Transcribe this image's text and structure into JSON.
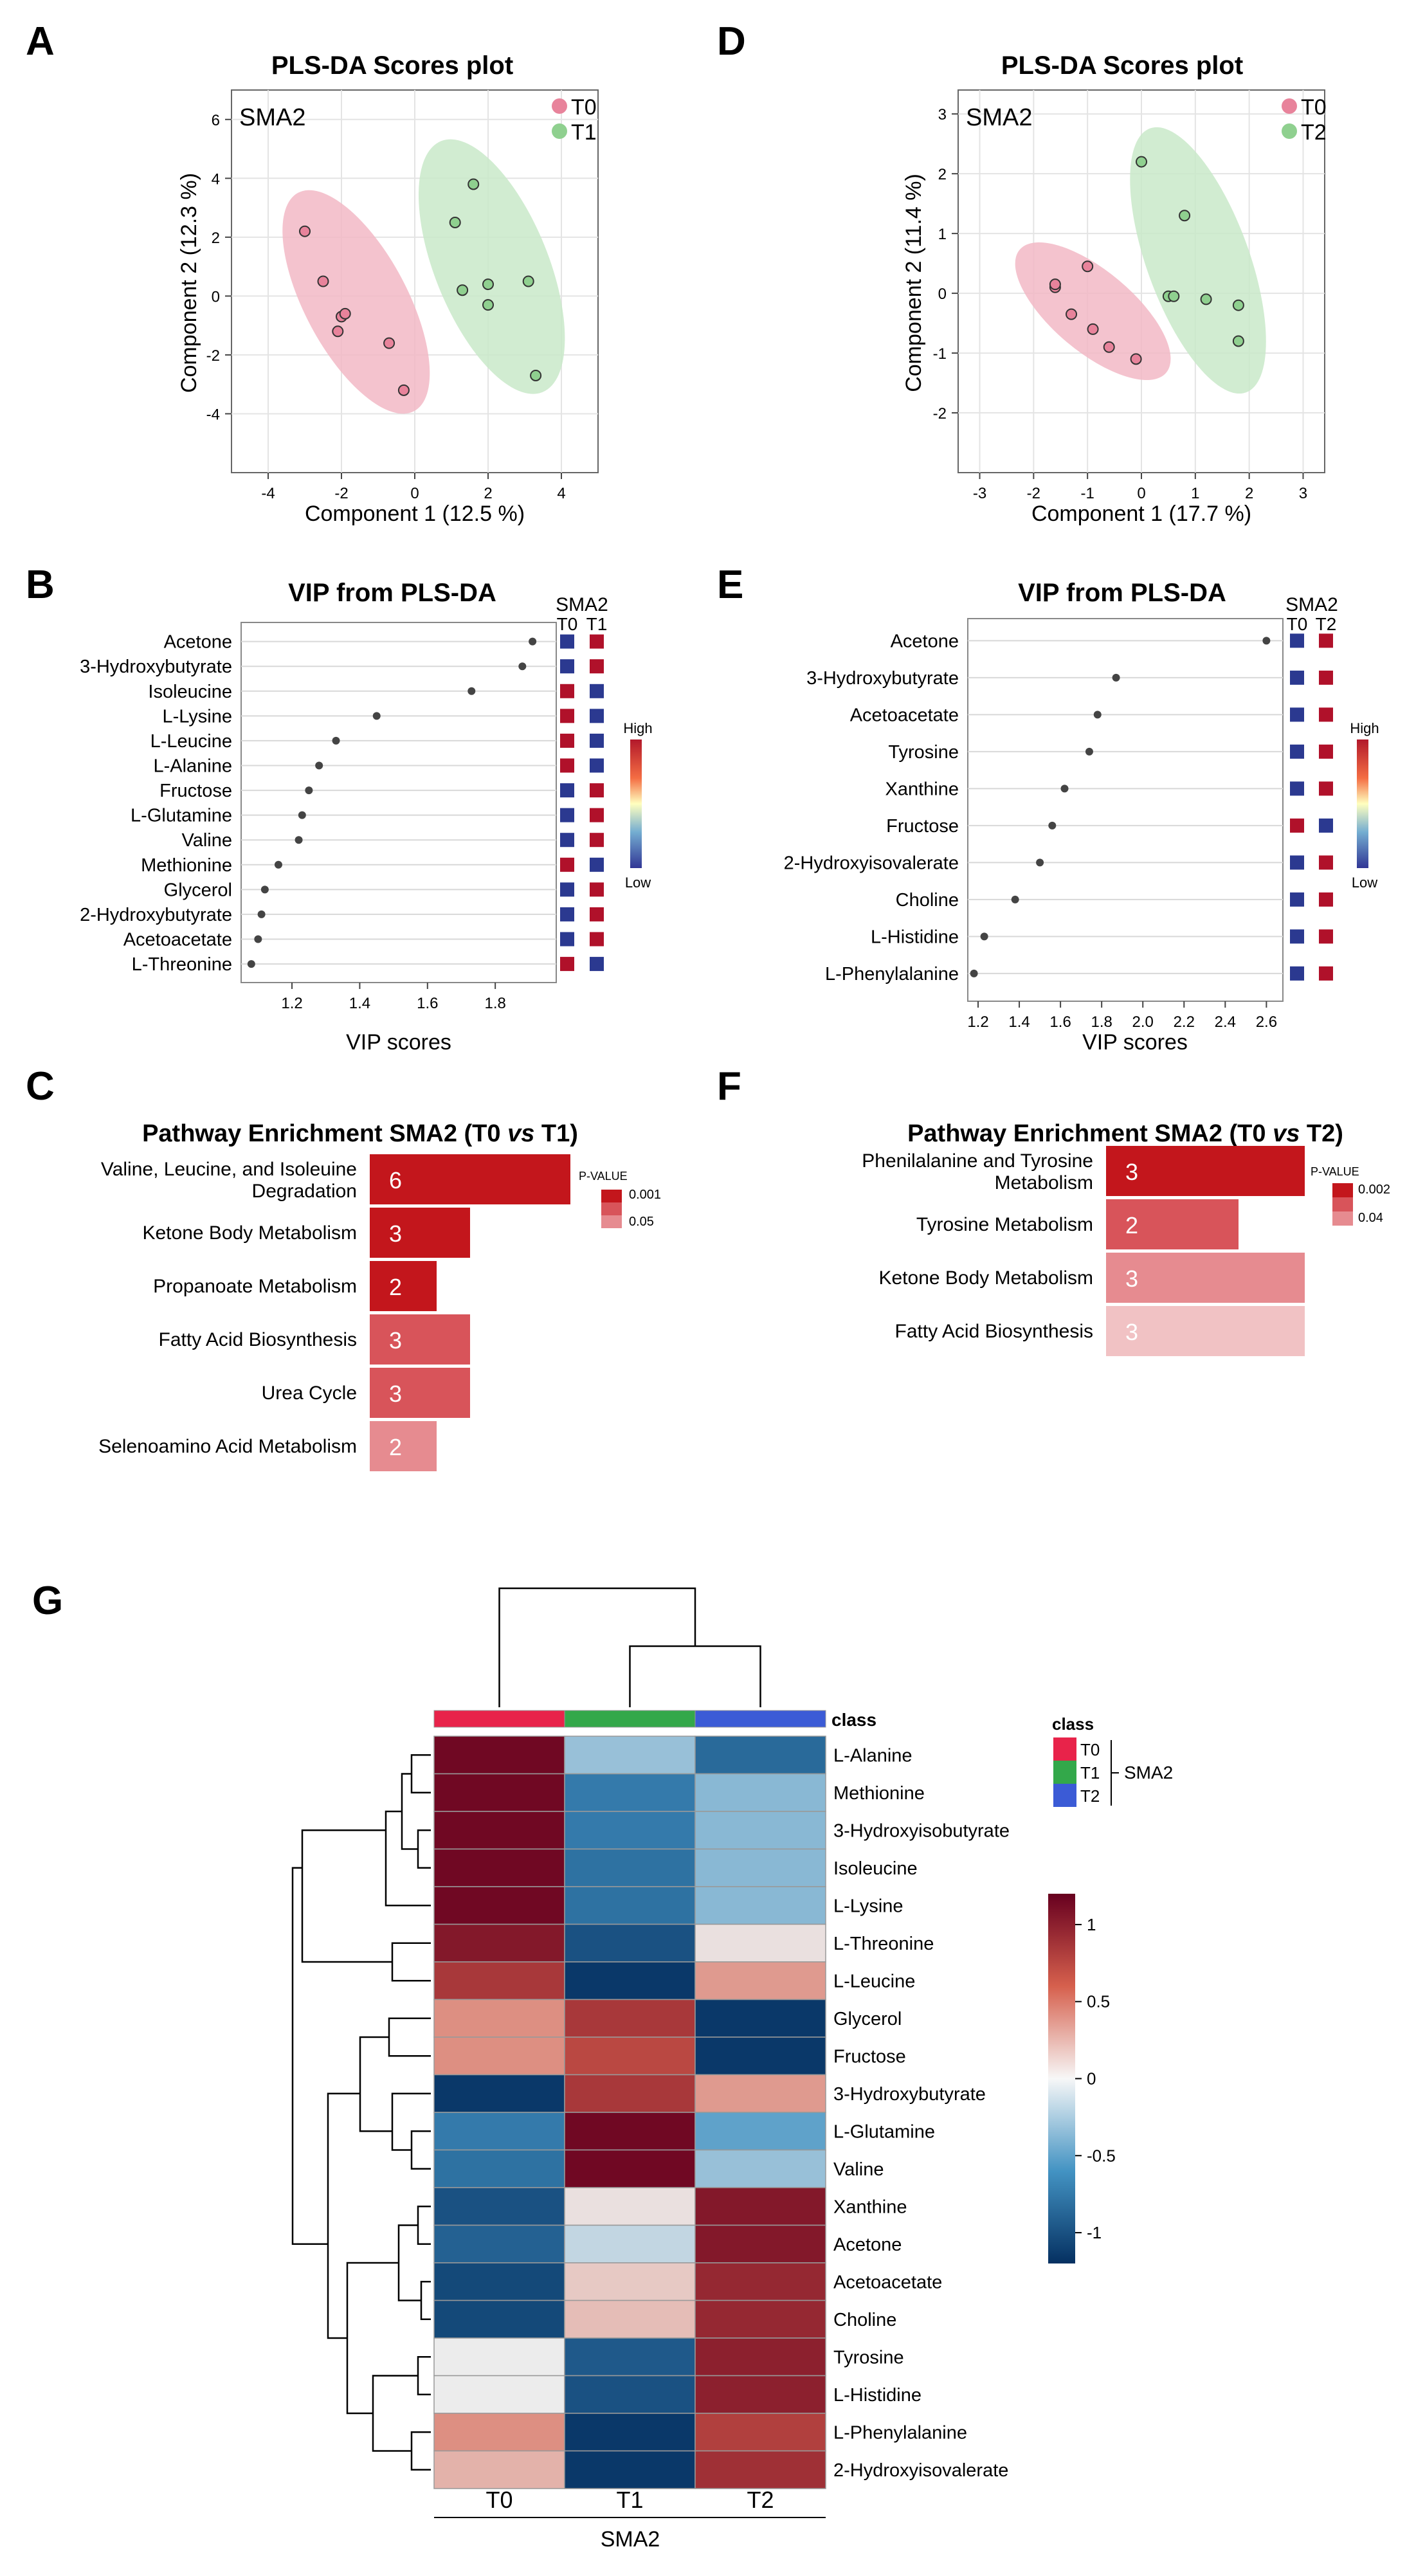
{
  "figure": {
    "panel_labels": {
      "A": "A",
      "B": "B",
      "C": "C",
      "D": "D",
      "E": "E",
      "F": "F",
      "G": "G"
    }
  },
  "colors": {
    "t0_fill": "#f2b8c6",
    "t0_point": "#e8839b",
    "t1_fill": "#c9e9c9",
    "t1_point": "#8fd08f",
    "sq_blue": "#2b3990",
    "sq_red": "#b0112a",
    "bar_dark": "#c3161c",
    "bar_mid": "#d8545a",
    "bar_light": "#e68b90",
    "bar_pale": "#f1c2c4",
    "class_t0": "#e8234a",
    "class_t1": "#33a84a",
    "class_t2": "#3b5bd6"
  },
  "panelA": {
    "title": "PLS-DA Scores plot",
    "group_label": "SMA2",
    "legend": [
      "T0",
      "T1"
    ],
    "xlabel": "Component 1 (12.5 %)",
    "ylabel": "Component 2 (12.3 %)",
    "xticks": [
      "-4",
      "-2",
      "0",
      "2",
      "4"
    ],
    "yticks": [
      "6",
      "4",
      "2",
      "0",
      "-2",
      "-4"
    ]
  },
  "panelD": {
    "title": "PLS-DA Scores plot",
    "group_label": "SMA2",
    "legend": [
      "T0",
      "T2"
    ],
    "xlabel": "Component 1 (17.7 %)",
    "ylabel": "Component 2 (11.4 %)",
    "xticks": [
      "-3",
      "-2",
      "-1",
      "0",
      "1",
      "2",
      "3"
    ],
    "yticks": [
      "3",
      "2",
      "1",
      "0",
      "-1",
      "-2"
    ]
  },
  "panelB": {
    "title": "VIP from PLS-DA",
    "xlabel": "VIP scores",
    "xticks": [
      "1.2",
      "1.4",
      "1.6",
      "1.8"
    ],
    "group_label": "SMA2",
    "col_labels": [
      "T0",
      "T1"
    ],
    "colorbar_high": "High",
    "colorbar_low": "Low"
  },
  "panelE": {
    "title": "VIP from PLS-DA",
    "xlabel": "VIP scores",
    "xticks": [
      "1.2",
      "1.4",
      "1.6",
      "1.8",
      "2.0",
      "2.2",
      "2.4",
      "2.6"
    ],
    "group_label": "SMA2",
    "col_labels": [
      "T0",
      "T2"
    ],
    "colorbar_high": "High",
    "colorbar_low": "Low"
  },
  "panelC": {
    "title_prefix": "Pathway Enrichment SMA2 (T0 ",
    "title_vs": "vs",
    "title_suffix": " T1)",
    "legend_title": "P-VALUE",
    "legend_top": "0.001",
    "legend_bottom": "0.05"
  },
  "panelF": {
    "title_prefix": "Pathway Enrichment SMA2 (T0 ",
    "title_vs": "vs",
    "title_suffix": " T2)",
    "legend_title": "P-VALUE",
    "legend_top": "0.002",
    "legend_bottom": "0.04"
  },
  "panelG": {
    "class_label": "class",
    "legend_title": "class",
    "legend_items": [
      "T0",
      "T1",
      "T2"
    ],
    "legend_group": "SMA2",
    "colorbar_ticks": [
      "1",
      "0.5",
      "0",
      "-0.5",
      "-1"
    ],
    "xlabel_group": "SMA2"
  },
  "chart_data": [
    {
      "id": "A",
      "type": "scatter",
      "title": "PLS-DA Scores plot",
      "xlabel": "Component 1 (12.5 %)",
      "ylabel": "Component 2 (12.3 %)",
      "xlim": [
        -5,
        5
      ],
      "ylim": [
        -6,
        7
      ],
      "series": [
        {
          "name": "T0",
          "points": [
            [
              -3.0,
              2.2
            ],
            [
              -2.5,
              0.5
            ],
            [
              -2.0,
              -0.7
            ],
            [
              -1.9,
              -0.6
            ],
            [
              -2.1,
              -1.2
            ],
            [
              -0.7,
              -1.6
            ],
            [
              -0.3,
              -3.2
            ]
          ]
        },
        {
          "name": "T1",
          "points": [
            [
              1.6,
              3.8
            ],
            [
              1.1,
              2.5
            ],
            [
              1.3,
              0.2
            ],
            [
              2.0,
              0.4
            ],
            [
              3.1,
              0.5
            ],
            [
              2.0,
              -0.3
            ],
            [
              3.3,
              -2.7
            ]
          ]
        }
      ]
    },
    {
      "id": "D",
      "type": "scatter",
      "title": "PLS-DA Scores plot",
      "xlabel": "Component 1 (17.7 %)",
      "ylabel": "Component 2 (11.4 %)",
      "xlim": [
        -3.4,
        3.4
      ],
      "ylim": [
        -3,
        3.4
      ],
      "series": [
        {
          "name": "T0",
          "points": [
            [
              -1.6,
              0.1
            ],
            [
              -1.6,
              0.15
            ],
            [
              -1.3,
              -0.35
            ],
            [
              -0.9,
              -0.6
            ],
            [
              -1.0,
              0.45
            ],
            [
              -0.6,
              -0.9
            ],
            [
              -0.1,
              -1.1
            ]
          ]
        },
        {
          "name": "T2",
          "points": [
            [
              0.0,
              2.2
            ],
            [
              0.8,
              1.3
            ],
            [
              0.5,
              -0.05
            ],
            [
              0.6,
              -0.05
            ],
            [
              1.2,
              -0.1
            ],
            [
              1.8,
              -0.2
            ],
            [
              1.8,
              -0.8
            ]
          ]
        }
      ]
    },
    {
      "id": "B",
      "type": "dot",
      "title": "VIP from PLS-DA",
      "xlabel": "VIP scores",
      "xlim": [
        1.05,
        1.98
      ],
      "categories": [
        "Acetone",
        "3-Hydroxybutyrate",
        "Isoleucine",
        "L-Lysine",
        "L-Leucine",
        "L-Alanine",
        "Fructose",
        "L-Glutamine",
        "Valine",
        "Methionine",
        "Glycerol",
        "2-Hydroxybutyrate",
        "Acetoacetate",
        "L-Threonine"
      ],
      "values": [
        1.91,
        1.88,
        1.73,
        1.45,
        1.33,
        1.28,
        1.25,
        1.23,
        1.22,
        1.16,
        1.12,
        1.11,
        1.1,
        1.08
      ],
      "heat": [
        [
          "B",
          "R"
        ],
        [
          "B",
          "R"
        ],
        [
          "R",
          "B"
        ],
        [
          "R",
          "B"
        ],
        [
          "R",
          "B"
        ],
        [
          "R",
          "B"
        ],
        [
          "B",
          "R"
        ],
        [
          "B",
          "R"
        ],
        [
          "B",
          "R"
        ],
        [
          "R",
          "B"
        ],
        [
          "B",
          "R"
        ],
        [
          "B",
          "R"
        ],
        [
          "B",
          "R"
        ],
        [
          "R",
          "B"
        ]
      ]
    },
    {
      "id": "E",
      "type": "dot",
      "title": "VIP from PLS-DA",
      "xlabel": "VIP scores",
      "xlim": [
        1.15,
        2.68
      ],
      "categories": [
        "Acetone",
        "3-Hydroxybutyrate",
        "Acetoacetate",
        "Tyrosine",
        "Xanthine",
        "Fructose",
        "2-Hydroxyisovalerate",
        "Choline",
        "L-Histidine",
        "L-Phenylalanine"
      ],
      "values": [
        2.6,
        1.87,
        1.78,
        1.74,
        1.62,
        1.56,
        1.5,
        1.38,
        1.23,
        1.18
      ],
      "heat": [
        [
          "B",
          "R"
        ],
        [
          "B",
          "R"
        ],
        [
          "B",
          "R"
        ],
        [
          "B",
          "R"
        ],
        [
          "B",
          "R"
        ],
        [
          "R",
          "B"
        ],
        [
          "B",
          "R"
        ],
        [
          "B",
          "R"
        ],
        [
          "B",
          "R"
        ],
        [
          "B",
          "R"
        ]
      ]
    },
    {
      "id": "C",
      "type": "bar",
      "title": "Pathway Enrichment SMA2 (T0 vs T1)",
      "categories": [
        "Valine, Leucine, and Isoleuine Degradation",
        "Ketone Body Metabolism",
        "Propanoate Metabolism",
        "Fatty Acid Biosynthesis",
        "Urea Cycle",
        "Selenoamino Acid Metabolism"
      ],
      "values": [
        6,
        3,
        2,
        3,
        3,
        2
      ],
      "shade": [
        "dark",
        "dark",
        "dark",
        "mid",
        "mid",
        "light"
      ]
    },
    {
      "id": "F",
      "type": "bar",
      "title": "Pathway Enrichment SMA2 (T0 vs T2)",
      "categories": [
        "Phenilalanine and Tyrosine Metabolism",
        "Tyrosine Metabolism",
        "Ketone Body Metabolism",
        "Fatty Acid Biosynthesis"
      ],
      "values": [
        3,
        2,
        3,
        3
      ],
      "shade": [
        "dark",
        "mid",
        "light",
        "pale"
      ]
    },
    {
      "id": "G",
      "type": "heatmap",
      "columns": [
        "T0",
        "T1",
        "T2"
      ],
      "rows": [
        "L-Alanine",
        "Methionine",
        "3-Hydroxyisobutyrate",
        "Isoleucine",
        "L-Lysine",
        "L-Threonine",
        "L-Leucine",
        "Glycerol",
        "Fructose",
        "3-Hydroxybutyrate",
        "L-Glutamine",
        "Valine",
        "Xanthine",
        "Acetone",
        "Acetoacetate",
        "Choline",
        "Tyrosine",
        "L-Histidine",
        "L-Phenylalanine",
        "2-Hydroxyisovalerate"
      ],
      "values": [
        [
          1.15,
          -0.3,
          -0.85
        ],
        [
          1.15,
          -0.75,
          -0.35
        ],
        [
          1.15,
          -0.75,
          -0.35
        ],
        [
          1.15,
          -0.8,
          -0.35
        ],
        [
          1.15,
          -0.8,
          -0.35
        ],
        [
          1.05,
          -1.0,
          0.05
        ],
        [
          0.85,
          -1.15,
          0.35
        ],
        [
          0.4,
          0.85,
          -1.15
        ],
        [
          0.4,
          0.75,
          -1.15
        ],
        [
          -1.15,
          0.85,
          0.35
        ],
        [
          -0.75,
          1.15,
          -0.5
        ],
        [
          -0.8,
          1.15,
          -0.3
        ],
        [
          -1.0,
          0.05,
          1.05
        ],
        [
          -0.9,
          -0.15,
          1.05
        ],
        [
          -1.05,
          0.15,
          0.95
        ],
        [
          -1.05,
          0.2,
          0.95
        ],
        [
          0.0,
          -0.95,
          1.0
        ],
        [
          0.0,
          -1.0,
          1.0
        ],
        [
          0.4,
          -1.15,
          0.8
        ],
        [
          0.25,
          -1.15,
          0.9
        ]
      ],
      "zlim": [
        -1.2,
        1.2
      ]
    }
  ]
}
